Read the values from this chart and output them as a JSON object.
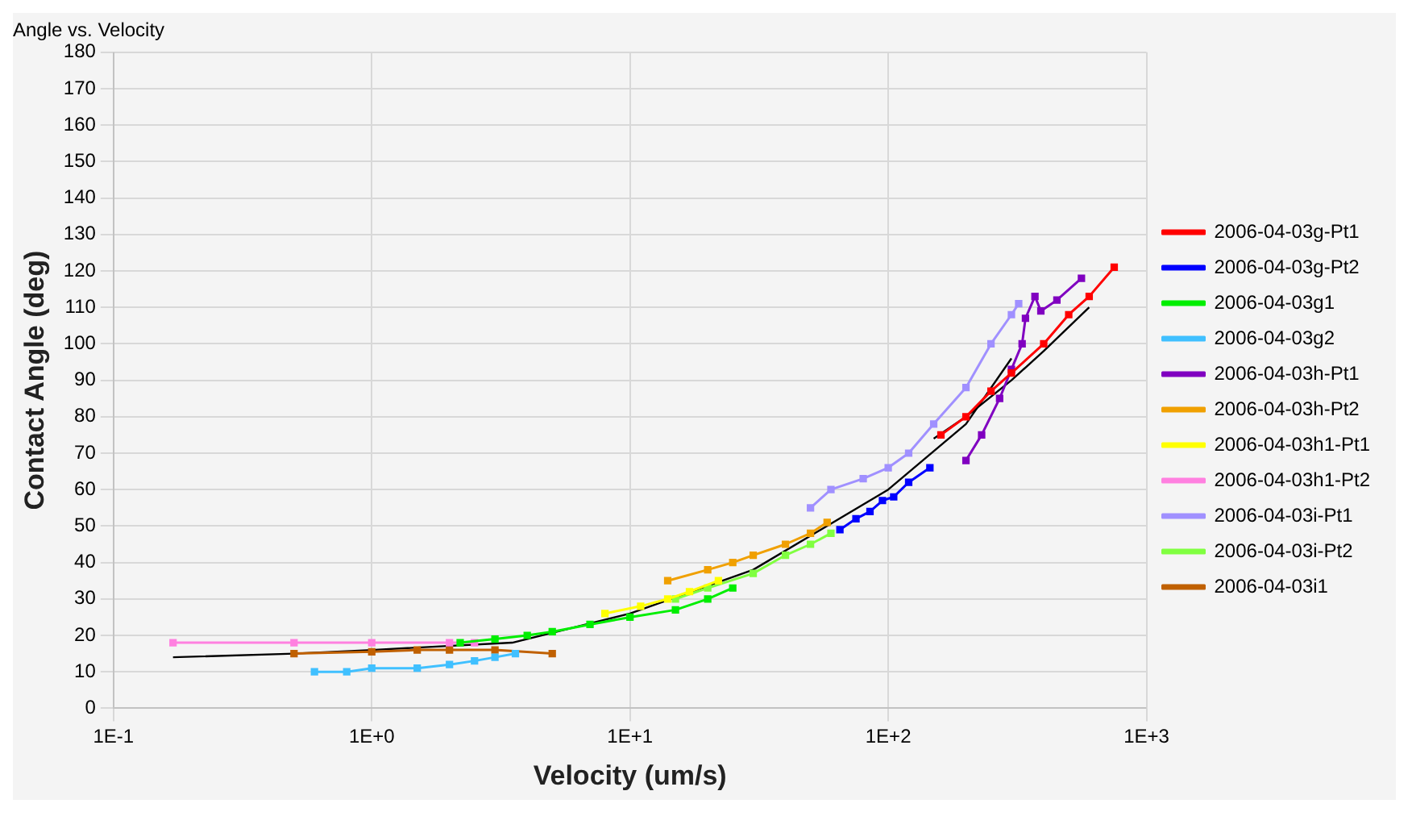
{
  "chart_data": {
    "type": "line",
    "title": "Angle vs. Velocity",
    "xlabel": "Velocity (um/s)",
    "ylabel": "Contact Angle (deg)",
    "log": "x",
    "grid": true,
    "legend": "right",
    "marker": "square",
    "line_style": "solid",
    "xlim": [
      0.1,
      1000
    ],
    "xticks": [
      {
        "value": 0.1,
        "label": "1E-1"
      },
      {
        "value": 1,
        "label": "1E+0"
      },
      {
        "value": 10,
        "label": "1E+1"
      },
      {
        "value": 100,
        "label": "1E+2"
      },
      {
        "value": 1000,
        "label": "1E+3"
      }
    ],
    "ylim": [
      0,
      180
    ],
    "yticks": [
      0,
      10,
      20,
      30,
      40,
      50,
      60,
      70,
      80,
      90,
      100,
      110,
      120,
      130,
      140,
      150,
      160,
      170,
      180
    ],
    "series": [
      {
        "name": "2006-04-03g-Pt1",
        "color": "#ff0000",
        "x": [
          160,
          200,
          250,
          300,
          400,
          500,
          600,
          750
        ],
        "values": [
          75,
          80,
          87,
          92,
          100,
          108,
          113,
          121
        ]
      },
      {
        "name": "2006-04-03g-Pt2",
        "color": "#0000ff",
        "x": [
          65,
          75,
          85,
          95,
          105,
          120,
          145
        ],
        "values": [
          49,
          52,
          54,
          57,
          58,
          62,
          66
        ]
      },
      {
        "name": "2006-04-03g1",
        "color": "#00ee00",
        "x": [
          2.2,
          3,
          4,
          5,
          7,
          10,
          15,
          20,
          25
        ],
        "values": [
          18,
          19,
          20,
          21,
          23,
          25,
          27,
          30,
          33
        ]
      },
      {
        "name": "2006-04-03g2",
        "color": "#40c0ff",
        "x": [
          0.6,
          0.8,
          1,
          1.5,
          2,
          2.5,
          3,
          3.6
        ],
        "values": [
          10,
          10,
          11,
          11,
          12,
          13,
          14,
          15
        ]
      },
      {
        "name": "2006-04-03h-Pt1",
        "color": "#8000c0",
        "x": [
          200,
          230,
          270,
          300,
          330,
          340,
          370,
          390,
          450,
          560
        ],
        "values": [
          68,
          75,
          85,
          93,
          100,
          107,
          113,
          109,
          112,
          118
        ]
      },
      {
        "name": "2006-04-03h-Pt2",
        "color": "#f0a000",
        "x": [
          14,
          20,
          25,
          30,
          40,
          50,
          58
        ],
        "values": [
          35,
          38,
          40,
          42,
          45,
          48,
          51
        ]
      },
      {
        "name": "2006-04-03h1-Pt1",
        "color": "#ffff00",
        "x": [
          8,
          11,
          14,
          17,
          22
        ],
        "values": [
          26,
          28,
          30,
          32,
          35
        ]
      },
      {
        "name": "2006-04-03h1-Pt2",
        "color": "#ff80e0",
        "x": [
          0.17,
          0.5,
          1,
          2,
          2.5
        ],
        "values": [
          18,
          18,
          18,
          18,
          18
        ]
      },
      {
        "name": "2006-04-03i-Pt1",
        "color": "#a090ff",
        "x": [
          50,
          60,
          80,
          100,
          120,
          150,
          200,
          250,
          300,
          320
        ],
        "values": [
          55,
          60,
          63,
          66,
          70,
          78,
          88,
          100,
          108,
          111
        ]
      },
      {
        "name": "2006-04-03i-Pt2",
        "color": "#80ff40",
        "x": [
          15,
          20,
          30,
          40,
          50,
          60
        ],
        "values": [
          30,
          33,
          37,
          42,
          45,
          48
        ]
      },
      {
        "name": "2006-04-03i1",
        "color": "#c06000",
        "x": [
          0.5,
          1,
          1.5,
          2,
          3,
          5
        ],
        "values": [
          15,
          15.5,
          16,
          16,
          16,
          15
        ]
      },
      {
        "type": "line",
        "marker": "none",
        "color": "#000000",
        "x": [
          0.17,
          0.5,
          1,
          3.5,
          10,
          30,
          100,
          200,
          300
        ],
        "values": [
          14,
          15,
          16,
          18,
          26,
          38,
          60,
          78,
          96
        ]
      },
      {
        "type": "line",
        "marker": "none",
        "color": "#000000",
        "x": [
          150,
          200,
          300,
          400,
          600
        ],
        "values": [
          74,
          80,
          90,
          98,
          110
        ]
      }
    ]
  }
}
